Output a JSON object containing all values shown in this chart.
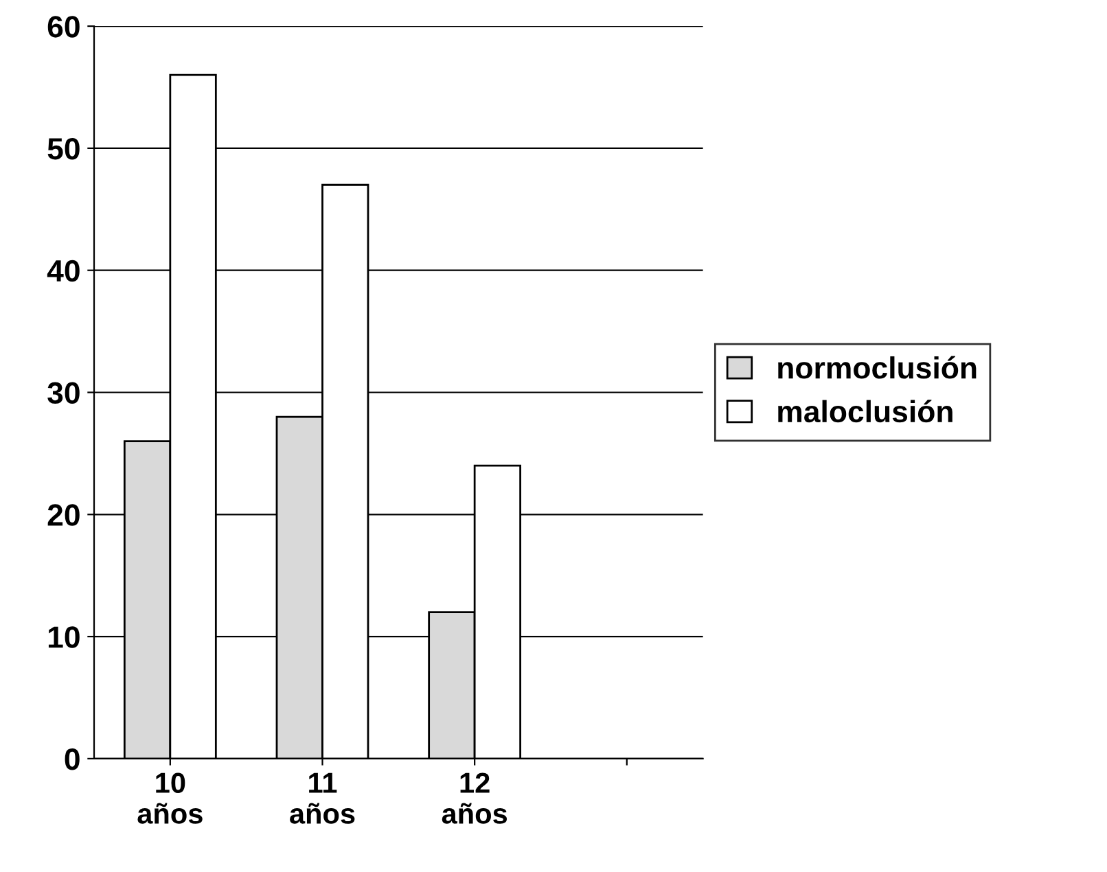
{
  "chart_data": {
    "type": "bar",
    "categories": [
      "10\naños",
      "11\naños",
      "12\naños",
      null
    ],
    "series": [
      {
        "name": "normoclusión",
        "color": "#d9d9d9",
        "values": [
          26,
          28,
          12,
          null
        ]
      },
      {
        "name": "maloclusión",
        "color": "#ffffff",
        "values": [
          56,
          47,
          24,
          null
        ]
      }
    ],
    "ylim": [
      0,
      60
    ],
    "yticks": [
      0,
      10,
      20,
      30,
      40,
      50,
      60
    ],
    "grid": "y",
    "legend": "right"
  }
}
